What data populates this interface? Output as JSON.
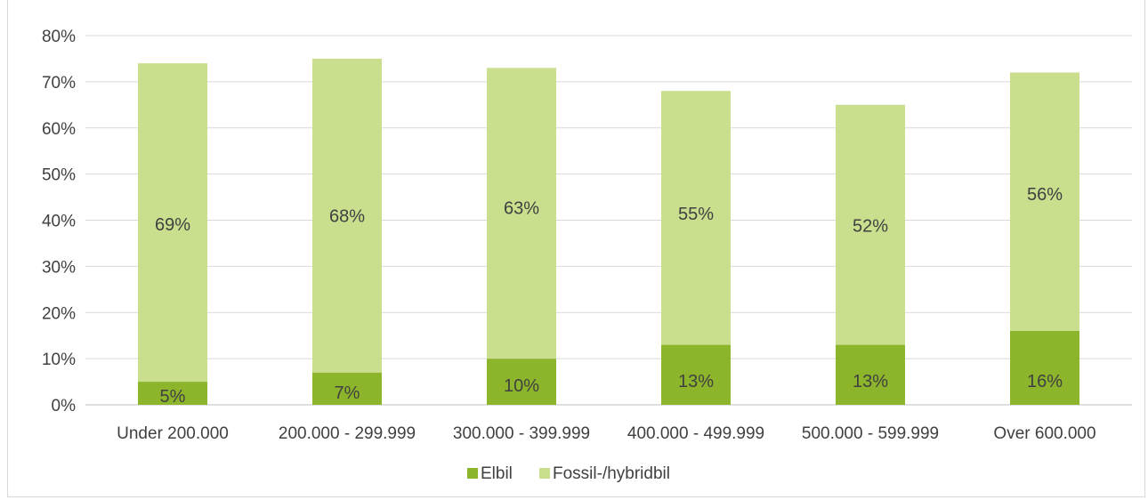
{
  "chart_data": {
    "type": "bar",
    "stacked": true,
    "categories": [
      "Under 200.000",
      "200.000 - 299.999",
      "300.000 - 399.999",
      "400.000 - 499.999",
      "500.000 - 599.999",
      "Over 600.000"
    ],
    "series": [
      {
        "name": "Elbil",
        "values": [
          5,
          7,
          10,
          13,
          13,
          16
        ],
        "labels": [
          "5%",
          "7%",
          "10%",
          "13%",
          "13%",
          "16%"
        ],
        "color": "#8db52b"
      },
      {
        "name": "Fossil-/hybridbil",
        "values": [
          69,
          68,
          63,
          55,
          52,
          56
        ],
        "labels": [
          "69%",
          "68%",
          "63%",
          "55%",
          "52%",
          "56%"
        ],
        "color": "#c9df8e"
      }
    ],
    "ylim": [
      0,
      80
    ],
    "yticks": [
      0,
      10,
      20,
      30,
      40,
      50,
      60,
      70,
      80
    ],
    "ytick_labels": [
      "0%",
      "10%",
      "20%",
      "30%",
      "40%",
      "50%",
      "60%",
      "70%",
      "80%"
    ],
    "grid": true,
    "legend_position": "bottom",
    "title": "",
    "xlabel": "",
    "ylabel": ""
  }
}
